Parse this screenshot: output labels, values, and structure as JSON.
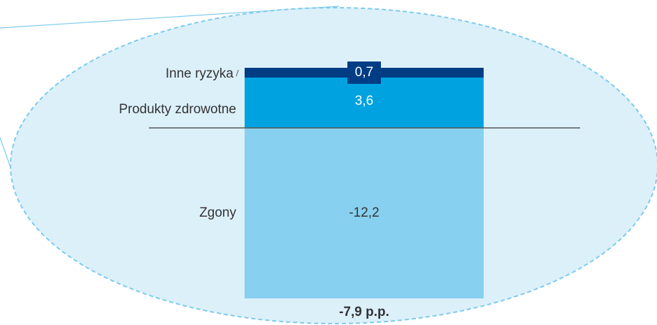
{
  "chart_data": {
    "type": "bar",
    "stacked": true,
    "categories": [
      null
    ],
    "series": [
      {
        "name": "Zgony",
        "color": "#87d0f0",
        "values": [
          -12.2
        ],
        "value_labels": [
          "-12,2"
        ]
      },
      {
        "name": "Produkty zdrowotne",
        "color": "#00a3e0",
        "values": [
          3.6
        ],
        "value_labels": [
          "3,6"
        ]
      },
      {
        "name": "Inne ryzyka",
        "color": "#003d85",
        "values": [
          0.7
        ],
        "value_labels": [
          "0,7"
        ]
      }
    ],
    "total_label": "-7,9 p.p."
  }
}
